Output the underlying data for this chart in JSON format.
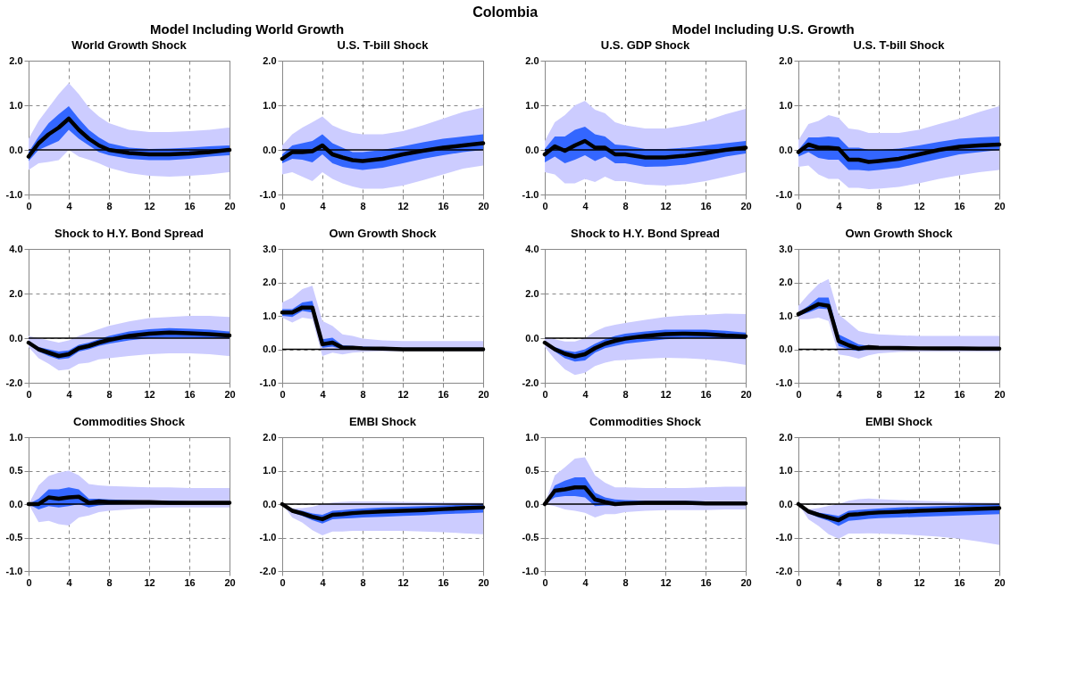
{
  "chart_data": [
    {
      "type": "line",
      "title": "World Growth Shock",
      "annotations": [
        "Colombia",
        "Model Including World Growth"
      ],
      "x": [
        0,
        1,
        2,
        3,
        4,
        5,
        6,
        7,
        8,
        10,
        12,
        14,
        16,
        18,
        20
      ],
      "xlim": [
        0,
        20
      ],
      "xticks": [
        0,
        4,
        8,
        12,
        16,
        20
      ],
      "ylim": [
        -1,
        2
      ],
      "yticks": [
        {
          "value": -1,
          "label": "-1.0"
        },
        {
          "value": 0,
          "label": "0.0"
        },
        {
          "value": 1,
          "label": "1.0"
        },
        {
          "value": 2,
          "label": "2.0"
        }
      ],
      "grid": true,
      "ref_lines": [
        {
          "axis": "y",
          "value": 0,
          "color": "#000000"
        }
      ],
      "series": [
        {
          "color": "#ccccff",
          "values": [
            null,
            null,
            null,
            null,
            null,
            null,
            null,
            null,
            null,
            null,
            null,
            null,
            null,
            null,
            null
          ],
          "lower": [
            -0.45,
            -0.3,
            -0.27,
            -0.23,
            0.0,
            -0.15,
            -0.22,
            -0.3,
            -0.4,
            -0.52,
            -0.58,
            -0.6,
            -0.58,
            -0.55,
            -0.5
          ],
          "upper": [
            0.25,
            0.65,
            0.95,
            1.25,
            1.5,
            1.25,
            0.95,
            0.75,
            0.6,
            0.45,
            0.4,
            0.4,
            0.42,
            0.45,
            0.5
          ]
        },
        {
          "color": "#3366ff",
          "values": [
            null,
            null,
            null,
            null,
            null,
            null,
            null,
            null,
            null,
            null,
            null,
            null,
            null,
            null,
            null
          ],
          "lower": [
            -0.25,
            0.0,
            0.1,
            0.2,
            0.45,
            0.25,
            0.1,
            -0.05,
            -0.12,
            -0.2,
            -0.23,
            -0.23,
            -0.2,
            -0.15,
            -0.12
          ],
          "upper": [
            -0.05,
            0.3,
            0.6,
            0.8,
            0.98,
            0.7,
            0.45,
            0.28,
            0.15,
            0.05,
            0.02,
            0.03,
            0.05,
            0.08,
            0.1
          ]
        },
        {
          "color": "#000000",
          "values": [
            -0.15,
            0.15,
            0.35,
            0.5,
            0.7,
            0.45,
            0.25,
            0.1,
            0.0,
            -0.07,
            -0.1,
            -0.1,
            -0.08,
            -0.05,
            0.0
          ]
        }
      ]
    },
    {
      "type": "line",
      "title": "U.S. T-bill Shock",
      "x": [
        0,
        1,
        2,
        3,
        4,
        5,
        6,
        7,
        8,
        10,
        12,
        14,
        16,
        18,
        20
      ],
      "xlim": [
        0,
        20
      ],
      "xticks": [
        0,
        4,
        8,
        12,
        16,
        20
      ],
      "ylim": [
        -1,
        2
      ],
      "yticks": [
        {
          "value": -1,
          "label": "-1.0"
        },
        {
          "value": 0,
          "label": "0.0"
        },
        {
          "value": 1,
          "label": "1.0"
        },
        {
          "value": 2,
          "label": "2.0"
        }
      ],
      "grid": true,
      "ref_lines": [
        {
          "axis": "y",
          "value": 0,
          "color": "#000000"
        }
      ],
      "series": [
        {
          "color": "#ccccff",
          "values": [
            null,
            null,
            null,
            null,
            null,
            null,
            null,
            null,
            null,
            null,
            null,
            null,
            null,
            null,
            null
          ],
          "lower": [
            -0.55,
            -0.5,
            -0.6,
            -0.7,
            -0.5,
            -0.65,
            -0.75,
            -0.82,
            -0.87,
            -0.87,
            -0.8,
            -0.68,
            -0.55,
            -0.42,
            -0.35
          ],
          "upper": [
            0.1,
            0.35,
            0.5,
            0.62,
            0.75,
            0.55,
            0.45,
            0.38,
            0.35,
            0.35,
            0.42,
            0.55,
            0.7,
            0.85,
            0.95
          ]
        },
        {
          "color": "#3366ff",
          "values": [
            null,
            null,
            null,
            null,
            null,
            null,
            null,
            null,
            null,
            null,
            null,
            null,
            null,
            null,
            null
          ],
          "lower": [
            -0.3,
            -0.2,
            -0.22,
            -0.28,
            -0.1,
            -0.3,
            -0.38,
            -0.42,
            -0.45,
            -0.4,
            -0.3,
            -0.2,
            -0.12,
            -0.05,
            0.0
          ],
          "upper": [
            -0.1,
            0.1,
            0.15,
            0.2,
            0.35,
            0.15,
            0.05,
            -0.05,
            -0.05,
            0.0,
            0.08,
            0.17,
            0.25,
            0.3,
            0.35
          ]
        },
        {
          "color": "#000000",
          "values": [
            -0.2,
            -0.05,
            -0.05,
            -0.03,
            0.1,
            -0.1,
            -0.17,
            -0.23,
            -0.25,
            -0.2,
            -0.1,
            -0.02,
            0.05,
            0.1,
            0.15
          ]
        }
      ]
    },
    {
      "type": "line",
      "title": "U.S. GDP Shock",
      "annotations": [
        "Model Including U.S. Growth"
      ],
      "x": [
        0,
        1,
        2,
        3,
        4,
        5,
        6,
        7,
        8,
        10,
        12,
        14,
        16,
        18,
        20
      ],
      "xlim": [
        0,
        20
      ],
      "xticks": [
        0,
        4,
        8,
        12,
        16,
        20
      ],
      "ylim": [
        -1,
        2
      ],
      "yticks": [
        {
          "value": -1,
          "label": "-1.0"
        },
        {
          "value": 0,
          "label": "0.0"
        },
        {
          "value": 1,
          "label": "1.0"
        },
        {
          "value": 2,
          "label": "2.0"
        }
      ],
      "grid": true,
      "ref_lines": [
        {
          "axis": "y",
          "value": 0,
          "color": "#000000"
        }
      ],
      "series": [
        {
          "color": "#ccccff",
          "values": [
            null,
            null,
            null,
            null,
            null,
            null,
            null,
            null,
            null,
            null,
            null,
            null,
            null,
            null,
            null
          ],
          "lower": [
            -0.5,
            -0.55,
            -0.75,
            -0.75,
            -0.65,
            -0.72,
            -0.6,
            -0.7,
            -0.7,
            -0.78,
            -0.8,
            -0.77,
            -0.7,
            -0.6,
            -0.5
          ],
          "upper": [
            0.2,
            0.62,
            0.78,
            1.0,
            1.1,
            0.9,
            0.82,
            0.62,
            0.55,
            0.48,
            0.48,
            0.55,
            0.65,
            0.8,
            0.92
          ]
        },
        {
          "color": "#3366ff",
          "values": [
            null,
            null,
            null,
            null,
            null,
            null,
            null,
            null,
            null,
            null,
            null,
            null,
            null,
            null,
            null
          ],
          "lower": [
            -0.28,
            -0.15,
            -0.3,
            -0.22,
            -0.12,
            -0.25,
            -0.15,
            -0.3,
            -0.3,
            -0.38,
            -0.37,
            -0.33,
            -0.25,
            -0.15,
            -0.08
          ],
          "upper": [
            0.02,
            0.3,
            0.3,
            0.45,
            0.52,
            0.35,
            0.3,
            0.12,
            0.1,
            0.02,
            0.02,
            0.05,
            0.1,
            0.15,
            0.2
          ]
        },
        {
          "color": "#000000",
          "values": [
            -0.1,
            0.08,
            -0.02,
            0.1,
            0.2,
            0.05,
            0.05,
            -0.1,
            -0.1,
            -0.17,
            -0.17,
            -0.13,
            -0.07,
            0.0,
            0.05
          ]
        }
      ]
    },
    {
      "type": "line",
      "title": "U.S. T-bill Shock",
      "x": [
        0,
        1,
        2,
        3,
        4,
        5,
        6,
        7,
        8,
        10,
        12,
        14,
        16,
        18,
        20
      ],
      "xlim": [
        0,
        20
      ],
      "xticks": [
        0,
        4,
        8,
        12,
        16,
        20
      ],
      "ylim": [
        -1,
        2
      ],
      "yticks": [
        {
          "value": -1,
          "label": "-1.0"
        },
        {
          "value": 0,
          "label": "0.0"
        },
        {
          "value": 1,
          "label": "1.0"
        },
        {
          "value": 2,
          "label": "2.0"
        }
      ],
      "grid": true,
      "ref_lines": [
        {
          "axis": "y",
          "value": 0,
          "color": "#000000"
        }
      ],
      "series": [
        {
          "color": "#ccccff",
          "values": [
            null,
            null,
            null,
            null,
            null,
            null,
            null,
            null,
            null,
            null,
            null,
            null,
            null,
            null,
            null
          ],
          "lower": [
            -0.38,
            -0.35,
            -0.55,
            -0.65,
            -0.65,
            -0.85,
            -0.85,
            -0.88,
            -0.87,
            -0.83,
            -0.75,
            -0.65,
            -0.57,
            -0.5,
            -0.45
          ],
          "upper": [
            0.22,
            0.58,
            0.65,
            0.78,
            0.72,
            0.48,
            0.45,
            0.38,
            0.38,
            0.38,
            0.45,
            0.58,
            0.7,
            0.85,
            0.98
          ]
        },
        {
          "color": "#3366ff",
          "values": [
            null,
            null,
            null,
            null,
            null,
            null,
            null,
            null,
            null,
            null,
            null,
            null,
            null,
            null,
            null
          ],
          "lower": [
            -0.15,
            -0.05,
            -0.18,
            -0.22,
            -0.22,
            -0.45,
            -0.45,
            -0.47,
            -0.45,
            -0.4,
            -0.3,
            -0.2,
            -0.1,
            -0.05,
            0.0
          ],
          "upper": [
            0.0,
            0.28,
            0.28,
            0.3,
            0.28,
            0.05,
            0.05,
            0.0,
            0.0,
            0.03,
            0.1,
            0.18,
            0.25,
            0.28,
            0.3
          ]
        },
        {
          "color": "#000000",
          "values": [
            -0.05,
            0.12,
            0.05,
            0.05,
            0.03,
            -0.22,
            -0.22,
            -0.27,
            -0.25,
            -0.2,
            -0.1,
            0.0,
            0.07,
            0.1,
            0.12
          ]
        }
      ]
    },
    {
      "type": "line",
      "title": "Shock to H.Y. Bond Spread",
      "x": [
        0,
        1,
        2,
        3,
        4,
        5,
        6,
        7,
        8,
        10,
        12,
        14,
        16,
        18,
        20
      ],
      "xlim": [
        0,
        20
      ],
      "xticks": [
        0,
        4,
        8,
        12,
        16,
        20
      ],
      "ylim": [
        -2,
        4
      ],
      "yticks": [
        {
          "value": -2,
          "label": "-2.0"
        },
        {
          "value": 0,
          "label": "0.0"
        },
        {
          "value": 2,
          "label": "2.0"
        },
        {
          "value": 4,
          "label": "4.0"
        }
      ],
      "grid": true,
      "ref_lines": [
        {
          "axis": "y",
          "value": 0,
          "color": "#000000"
        }
      ],
      "series": [
        {
          "color": "#ccccff",
          "values": [
            null,
            null,
            null,
            null,
            null,
            null,
            null,
            null,
            null,
            null,
            null,
            null,
            null,
            null,
            null
          ],
          "lower": [
            -0.4,
            -0.9,
            -1.15,
            -1.45,
            -1.4,
            -1.15,
            -1.1,
            -0.95,
            -0.9,
            -0.8,
            -0.72,
            -0.68,
            -0.68,
            -0.72,
            -0.8
          ],
          "upper": [
            0.1,
            0.0,
            -0.1,
            -0.2,
            -0.1,
            0.1,
            0.25,
            0.4,
            0.55,
            0.75,
            0.9,
            0.95,
            1.0,
            1.0,
            0.95
          ]
        },
        {
          "color": "#3366ff",
          "values": [
            null,
            null,
            null,
            null,
            null,
            null,
            null,
            null,
            null,
            null,
            null,
            null,
            null,
            null,
            null
          ],
          "lower": [
            -0.25,
            -0.6,
            -0.8,
            -0.95,
            -0.9,
            -0.6,
            -0.5,
            -0.35,
            -0.25,
            -0.1,
            0.0,
            0.02,
            0.02,
            0.0,
            0.0
          ],
          "upper": [
            -0.15,
            -0.4,
            -0.5,
            -0.6,
            -0.55,
            -0.3,
            -0.2,
            -0.05,
            0.1,
            0.3,
            0.4,
            0.45,
            0.42,
            0.38,
            0.3
          ]
        },
        {
          "color": "#000000",
          "values": [
            -0.2,
            -0.5,
            -0.65,
            -0.8,
            -0.72,
            -0.45,
            -0.35,
            -0.2,
            -0.08,
            0.1,
            0.2,
            0.25,
            0.22,
            0.18,
            0.12
          ]
        }
      ]
    },
    {
      "type": "line",
      "title": "Own Growth Shock",
      "x": [
        0,
        1,
        2,
        3,
        4,
        5,
        6,
        7,
        8,
        10,
        12,
        14,
        16,
        18,
        20
      ],
      "xlim": [
        0,
        20
      ],
      "xticks": [
        0,
        4,
        8,
        12,
        16,
        20
      ],
      "ylim": [
        -1,
        3
      ],
      "yticks": [
        {
          "value": -1,
          "label": "-1.0"
        },
        {
          "value": 0,
          "label": "0.0"
        },
        {
          "value": 1,
          "label": "1.0"
        },
        {
          "value": 2,
          "label": "2.0"
        },
        {
          "value": 3,
          "label": "3.0"
        }
      ],
      "grid": true,
      "ref_lines": [
        {
          "axis": "y",
          "value": 0,
          "color": "#000000"
        }
      ],
      "series": [
        {
          "color": "#ccccff",
          "values": [
            null,
            null,
            null,
            null,
            null,
            null,
            null,
            null,
            null,
            null,
            null,
            null,
            null,
            null,
            null
          ],
          "lower": [
            0.95,
            0.8,
            0.95,
            0.9,
            -0.2,
            -0.1,
            -0.15,
            -0.1,
            -0.08,
            -0.06,
            -0.05,
            -0.05,
            -0.05,
            -0.05,
            -0.05
          ],
          "upper": [
            1.4,
            1.55,
            1.8,
            1.9,
            0.85,
            0.7,
            0.45,
            0.4,
            0.32,
            0.27,
            0.25,
            0.25,
            0.25,
            0.25,
            0.25
          ]
        },
        {
          "color": "#3366ff",
          "values": [
            null,
            null,
            null,
            null,
            null,
            null,
            null,
            null,
            null,
            null,
            null,
            null,
            null,
            null,
            null
          ],
          "lower": [
            1.0,
            0.97,
            1.15,
            1.1,
            0.05,
            0.08,
            0.0,
            0.0,
            0.0,
            -0.02,
            -0.03,
            -0.03,
            -0.03,
            -0.03,
            -0.03
          ],
          "upper": [
            1.2,
            1.2,
            1.4,
            1.45,
            0.3,
            0.35,
            0.12,
            0.1,
            0.08,
            0.06,
            0.05,
            0.05,
            0.05,
            0.05,
            0.05
          ]
        },
        {
          "color": "#000000",
          "values": [
            1.1,
            1.1,
            1.25,
            1.25,
            0.15,
            0.2,
            0.05,
            0.05,
            0.03,
            0.02,
            0.0,
            0.0,
            0.0,
            0.0,
            0.0
          ]
        }
      ]
    },
    {
      "type": "line",
      "title": "Shock to H.Y. Bond Spread",
      "x": [
        0,
        1,
        2,
        3,
        4,
        5,
        6,
        7,
        8,
        10,
        12,
        14,
        16,
        18,
        20
      ],
      "xlim": [
        0,
        20
      ],
      "xticks": [
        0,
        4,
        8,
        12,
        16,
        20
      ],
      "ylim": [
        -2,
        4
      ],
      "yticks": [
        {
          "value": -2,
          "label": "-2.0"
        },
        {
          "value": 0,
          "label": "0.0"
        },
        {
          "value": 2,
          "label": "2.0"
        },
        {
          "value": 4,
          "label": "4.0"
        }
      ],
      "grid": true,
      "ref_lines": [
        {
          "axis": "y",
          "value": 0,
          "color": "#000000"
        }
      ],
      "series": [
        {
          "color": "#ccccff",
          "values": [
            null,
            null,
            null,
            null,
            null,
            null,
            null,
            null,
            null,
            null,
            null,
            null,
            null,
            null,
            null
          ],
          "lower": [
            -0.4,
            -0.95,
            -1.4,
            -1.65,
            -1.55,
            -1.25,
            -1.1,
            -1.0,
            -0.98,
            -0.92,
            -0.88,
            -0.9,
            -0.95,
            -1.05,
            -1.2
          ],
          "upper": [
            0.05,
            -0.05,
            -0.15,
            -0.15,
            0.0,
            0.3,
            0.5,
            0.6,
            0.68,
            0.82,
            0.95,
            1.02,
            1.05,
            1.1,
            1.08
          ]
        },
        {
          "color": "#3366ff",
          "values": [
            null,
            null,
            null,
            null,
            null,
            null,
            null,
            null,
            null,
            null,
            null,
            null,
            null,
            null,
            null
          ],
          "lower": [
            -0.25,
            -0.6,
            -0.9,
            -1.05,
            -1.0,
            -0.65,
            -0.45,
            -0.35,
            -0.25,
            -0.15,
            -0.05,
            0.0,
            0.0,
            -0.02,
            -0.05
          ],
          "upper": [
            -0.15,
            -0.4,
            -0.55,
            -0.62,
            -0.5,
            -0.25,
            -0.05,
            0.1,
            0.2,
            0.3,
            0.38,
            0.38,
            0.38,
            0.33,
            0.25
          ]
        },
        {
          "color": "#000000",
          "values": [
            -0.2,
            -0.5,
            -0.7,
            -0.82,
            -0.72,
            -0.45,
            -0.25,
            -0.12,
            -0.02,
            0.1,
            0.18,
            0.2,
            0.18,
            0.12,
            0.08
          ]
        }
      ]
    },
    {
      "type": "line",
      "title": "Own Growth Shock",
      "x": [
        0,
        1,
        2,
        3,
        4,
        5,
        6,
        7,
        8,
        10,
        12,
        14,
        16,
        18,
        20
      ],
      "xlim": [
        0,
        20
      ],
      "xticks": [
        0,
        4,
        8,
        12,
        16,
        20
      ],
      "ylim": [
        -1,
        3
      ],
      "yticks": [
        {
          "value": -1,
          "label": "-1.0"
        },
        {
          "value": 0,
          "label": "0.0"
        },
        {
          "value": 1,
          "label": "1.0"
        },
        {
          "value": 2,
          "label": "2.0"
        },
        {
          "value": 3,
          "label": "3.0"
        }
      ],
      "grid": true,
      "ref_lines": [
        {
          "axis": "y",
          "value": 0,
          "color": "#000000"
        }
      ],
      "series": [
        {
          "color": "#ccccff",
          "values": [
            null,
            null,
            null,
            null,
            null,
            null,
            null,
            null,
            null,
            null,
            null,
            null,
            null,
            null,
            null
          ],
          "lower": [
            0.9,
            0.9,
            0.95,
            0.85,
            -0.15,
            -0.2,
            -0.28,
            -0.18,
            -0.12,
            -0.08,
            -0.07,
            -0.07,
            -0.07,
            -0.07,
            -0.07
          ],
          "upper": [
            1.3,
            1.65,
            1.95,
            2.1,
            1.05,
            0.8,
            0.55,
            0.48,
            0.45,
            0.42,
            0.4,
            0.4,
            0.4,
            0.4,
            0.4
          ]
        },
        {
          "color": "#3366ff",
          "values": [
            null,
            null,
            null,
            null,
            null,
            null,
            null,
            null,
            null,
            null,
            null,
            null,
            null,
            null,
            null
          ],
          "lower": [
            1.0,
            1.1,
            1.22,
            1.2,
            0.1,
            0.0,
            -0.05,
            0.0,
            0.0,
            0.0,
            0.0,
            0.0,
            -0.01,
            -0.01,
            -0.01
          ],
          "upper": [
            1.1,
            1.3,
            1.55,
            1.55,
            0.45,
            0.3,
            0.15,
            0.1,
            0.08,
            0.07,
            0.06,
            0.06,
            0.06,
            0.06,
            0.06
          ]
        },
        {
          "color": "#000000",
          "values": [
            1.05,
            1.2,
            1.35,
            1.3,
            0.25,
            0.12,
            0.02,
            0.07,
            0.05,
            0.04,
            0.03,
            0.03,
            0.03,
            0.02,
            0.02
          ]
        }
      ]
    },
    {
      "type": "line",
      "title": "Commodities Shock",
      "x": [
        0,
        1,
        2,
        3,
        4,
        5,
        6,
        7,
        8,
        10,
        12,
        14,
        16,
        18,
        20
      ],
      "xlim": [
        0,
        20
      ],
      "xticks": [
        0,
        4,
        8,
        12,
        16,
        20
      ],
      "ylim": [
        -1,
        1
      ],
      "yticks": [
        {
          "value": -1,
          "label": "-1.0"
        },
        {
          "value": -0.5,
          "label": "-0.5"
        },
        {
          "value": 0,
          "label": "0.0"
        },
        {
          "value": 0.5,
          "label": "0.5"
        },
        {
          "value": 1,
          "label": "1.0"
        }
      ],
      "grid": true,
      "ref_lines": [
        {
          "axis": "y",
          "value": 0,
          "color": "#000000"
        }
      ],
      "series": [
        {
          "color": "#ccccff",
          "values": [
            null,
            null,
            null,
            null,
            null,
            null,
            null,
            null,
            null,
            null,
            null,
            null,
            null,
            null,
            null
          ],
          "lower": [
            0.0,
            -0.27,
            -0.25,
            -0.3,
            -0.32,
            -0.2,
            -0.17,
            -0.12,
            -0.1,
            -0.08,
            -0.06,
            -0.05,
            -0.05,
            -0.05,
            -0.05
          ],
          "upper": [
            0.0,
            0.28,
            0.42,
            0.47,
            0.5,
            0.43,
            0.3,
            0.28,
            0.27,
            0.26,
            0.25,
            0.25,
            0.24,
            0.24,
            0.24
          ]
        },
        {
          "color": "#3366ff",
          "values": [
            null,
            null,
            null,
            null,
            null,
            null,
            null,
            null,
            null,
            null,
            null,
            null,
            null,
            null,
            null
          ],
          "lower": [
            0.0,
            -0.08,
            -0.03,
            -0.05,
            -0.03,
            0.0,
            -0.05,
            -0.02,
            -0.01,
            0.0,
            0.0,
            0.0,
            0.0,
            0.0,
            0.0
          ],
          "upper": [
            0.0,
            0.08,
            0.22,
            0.22,
            0.25,
            0.22,
            0.08,
            0.08,
            0.07,
            0.06,
            0.05,
            0.05,
            0.04,
            0.04,
            0.04
          ]
        },
        {
          "color": "#000000",
          "values": [
            0.0,
            0.0,
            0.1,
            0.08,
            0.1,
            0.11,
            0.02,
            0.04,
            0.03,
            0.03,
            0.03,
            0.02,
            0.02,
            0.02,
            0.02
          ]
        }
      ]
    },
    {
      "type": "line",
      "title": "EMBI Shock",
      "x": [
        0,
        1,
        2,
        3,
        4,
        5,
        6,
        7,
        8,
        10,
        12,
        14,
        16,
        18,
        20
      ],
      "xlim": [
        0,
        20
      ],
      "xticks": [
        0,
        4,
        8,
        12,
        16,
        20
      ],
      "ylim": [
        -2,
        2
      ],
      "yticks": [
        {
          "value": -2,
          "label": "-2.0"
        },
        {
          "value": -1,
          "label": "-1.0"
        },
        {
          "value": 0,
          "label": "0.0"
        },
        {
          "value": 1,
          "label": "1.0"
        },
        {
          "value": 2,
          "label": "2.0"
        }
      ],
      "grid": true,
      "ref_lines": [
        {
          "axis": "y",
          "value": 0,
          "color": "#000000"
        }
      ],
      "series": [
        {
          "color": "#ccccff",
          "values": [
            null,
            null,
            null,
            null,
            null,
            null,
            null,
            null,
            null,
            null,
            null,
            null,
            null,
            null,
            null
          ],
          "lower": [
            0.0,
            -0.4,
            -0.55,
            -0.78,
            -0.93,
            -0.82,
            -0.82,
            -0.8,
            -0.8,
            -0.8,
            -0.8,
            -0.82,
            -0.84,
            -0.87,
            -0.9
          ],
          "upper": [
            0.0,
            -0.12,
            -0.12,
            -0.08,
            0.0,
            0.05,
            0.07,
            0.08,
            0.08,
            0.08,
            0.07,
            0.06,
            0.05,
            0.05,
            0.04
          ]
        },
        {
          "color": "#3366ff",
          "values": [
            null,
            null,
            null,
            null,
            null,
            null,
            null,
            null,
            null,
            null,
            null,
            null,
            null,
            null,
            null
          ],
          "lower": [
            0.0,
            -0.25,
            -0.35,
            -0.48,
            -0.58,
            -0.45,
            -0.43,
            -0.42,
            -0.4,
            -0.38,
            -0.35,
            -0.33,
            -0.3,
            -0.28,
            -0.25
          ],
          "upper": [
            0.0,
            -0.15,
            -0.2,
            -0.28,
            -0.32,
            -0.2,
            -0.18,
            -0.15,
            -0.13,
            -0.1,
            -0.08,
            -0.06,
            -0.04,
            -0.02,
            0.0
          ]
        },
        {
          "color": "#000000",
          "values": [
            0.0,
            -0.2,
            -0.28,
            -0.38,
            -0.45,
            -0.32,
            -0.3,
            -0.27,
            -0.25,
            -0.22,
            -0.2,
            -0.18,
            -0.15,
            -0.12,
            -0.1
          ]
        }
      ]
    },
    {
      "type": "line",
      "title": "Commodities Shock",
      "x": [
        0,
        1,
        2,
        3,
        4,
        5,
        6,
        7,
        8,
        10,
        12,
        14,
        16,
        18,
        20
      ],
      "xlim": [
        0,
        20
      ],
      "xticks": [
        0,
        4,
        8,
        12,
        16,
        20
      ],
      "ylim": [
        -1,
        1
      ],
      "yticks": [
        {
          "value": -1,
          "label": "-1.0"
        },
        {
          "value": -0.5,
          "label": "-0.5"
        },
        {
          "value": 0,
          "label": "0.0"
        },
        {
          "value": 0.5,
          "label": "0.5"
        },
        {
          "value": 1,
          "label": "1.0"
        }
      ],
      "grid": true,
      "ref_lines": [
        {
          "axis": "y",
          "value": 0,
          "color": "#000000"
        }
      ],
      "series": [
        {
          "color": "#ccccff",
          "values": [
            null,
            null,
            null,
            null,
            null,
            null,
            null,
            null,
            null,
            null,
            null,
            null,
            null,
            null,
            null
          ],
          "lower": [
            0.0,
            -0.03,
            -0.08,
            -0.1,
            -0.13,
            -0.2,
            -0.15,
            -0.15,
            -0.12,
            -0.1,
            -0.09,
            -0.09,
            -0.09,
            -0.08,
            -0.08
          ],
          "upper": [
            0.0,
            0.43,
            0.55,
            0.68,
            0.7,
            0.43,
            0.32,
            0.25,
            0.25,
            0.24,
            0.24,
            0.24,
            0.25,
            0.26,
            0.26
          ]
        },
        {
          "color": "#3366ff",
          "values": [
            null,
            null,
            null,
            null,
            null,
            null,
            null,
            null,
            null,
            null,
            null,
            null,
            null,
            null,
            null
          ],
          "lower": [
            0.0,
            0.1,
            0.12,
            0.12,
            0.1,
            -0.03,
            -0.02,
            -0.02,
            -0.01,
            0.0,
            0.0,
            0.0,
            0.0,
            0.0,
            0.0
          ],
          "upper": [
            0.0,
            0.28,
            0.35,
            0.4,
            0.4,
            0.17,
            0.1,
            0.07,
            0.06,
            0.05,
            0.05,
            0.05,
            0.04,
            0.04,
            0.04
          ]
        },
        {
          "color": "#000000",
          "values": [
            0.0,
            0.2,
            0.22,
            0.25,
            0.25,
            0.07,
            0.03,
            0.0,
            0.01,
            0.02,
            0.02,
            0.02,
            0.01,
            0.01,
            0.01
          ]
        }
      ]
    },
    {
      "type": "line",
      "title": "EMBI Shock",
      "x": [
        0,
        1,
        2,
        3,
        4,
        5,
        6,
        7,
        8,
        10,
        12,
        14,
        16,
        18,
        20
      ],
      "xlim": [
        0,
        20
      ],
      "xticks": [
        0,
        4,
        8,
        12,
        16,
        20
      ],
      "ylim": [
        -2,
        2
      ],
      "yticks": [
        {
          "value": -2,
          "label": "-2.0"
        },
        {
          "value": -1,
          "label": "-1.0"
        },
        {
          "value": 0,
          "label": "0.0"
        },
        {
          "value": 1,
          "label": "1.0"
        },
        {
          "value": 2,
          "label": "2.0"
        }
      ],
      "grid": true,
      "ref_lines": [
        {
          "axis": "y",
          "value": 0,
          "color": "#000000"
        }
      ],
      "series": [
        {
          "color": "#ccccff",
          "values": [
            null,
            null,
            null,
            null,
            null,
            null,
            null,
            null,
            null,
            null,
            null,
            null,
            null,
            null,
            null
          ],
          "lower": [
            0.0,
            -0.45,
            -0.65,
            -0.9,
            -1.03,
            -0.88,
            -0.88,
            -0.87,
            -0.88,
            -0.9,
            -0.93,
            -0.97,
            -1.03,
            -1.12,
            -1.22
          ],
          "upper": [
            0.0,
            -0.15,
            -0.12,
            -0.05,
            0.0,
            0.1,
            0.15,
            0.17,
            0.15,
            0.12,
            0.1,
            0.08,
            0.06,
            0.05,
            0.04
          ]
        },
        {
          "color": "#3366ff",
          "values": [
            null,
            null,
            null,
            null,
            null,
            null,
            null,
            null,
            null,
            null,
            null,
            null,
            null,
            null,
            null
          ],
          "lower": [
            0.0,
            -0.27,
            -0.4,
            -0.5,
            -0.65,
            -0.5,
            -0.47,
            -0.44,
            -0.42,
            -0.4,
            -0.38,
            -0.36,
            -0.34,
            -0.32,
            -0.3
          ],
          "upper": [
            0.0,
            -0.17,
            -0.25,
            -0.3,
            -0.35,
            -0.2,
            -0.17,
            -0.15,
            -0.13,
            -0.1,
            -0.08,
            -0.06,
            -0.04,
            -0.02,
            0.0
          ]
        },
        {
          "color": "#000000",
          "values": [
            0.0,
            -0.22,
            -0.32,
            -0.4,
            -0.48,
            -0.32,
            -0.3,
            -0.27,
            -0.25,
            -0.23,
            -0.2,
            -0.18,
            -0.16,
            -0.14,
            -0.12
          ]
        }
      ]
    }
  ]
}
